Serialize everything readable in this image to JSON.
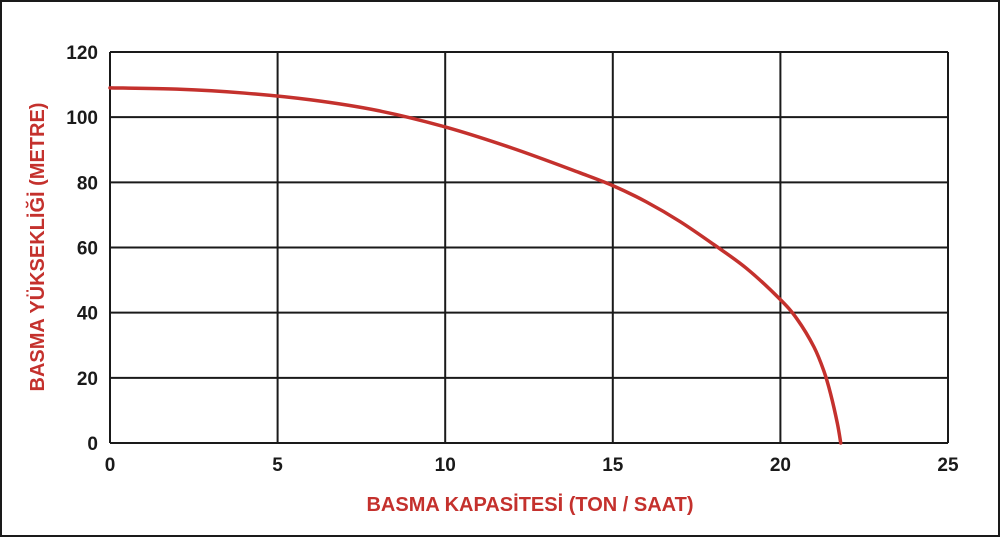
{
  "chart_data": {
    "type": "line",
    "title": "",
    "xlabel": "BASMA KAPASİTESİ (TON / SAAT)",
    "ylabel": "BASMA YÜKSEKLİĞİ (METRE)",
    "xlim": [
      0,
      25
    ],
    "ylim": [
      0,
      120
    ],
    "xticks": [
      0,
      5,
      10,
      15,
      20,
      25
    ],
    "yticks": [
      0,
      20,
      40,
      60,
      80,
      100,
      120
    ],
    "grid": true,
    "series": [
      {
        "name": "",
        "color": "#c4312d",
        "x": [
          0,
          2,
          4,
          6,
          8,
          10,
          12,
          14,
          15,
          16,
          17,
          18,
          19,
          20,
          20.5,
          21,
          21.3,
          21.5,
          21.7,
          21.8
        ],
        "y": [
          109,
          108.6,
          107.4,
          105.3,
          102,
          97,
          90.5,
          83,
          79,
          74,
          68,
          61,
          53.5,
          44,
          38,
          29.5,
          22,
          15,
          6,
          0
        ]
      }
    ]
  }
}
